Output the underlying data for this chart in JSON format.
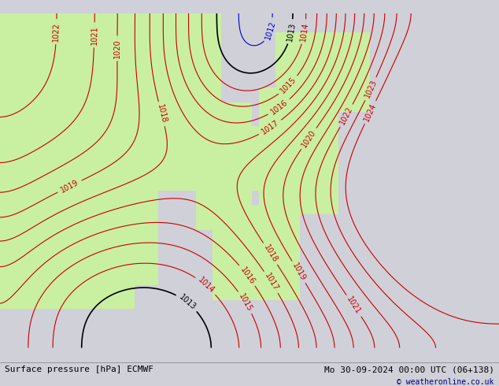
{
  "title_left": "Surface pressure [hPa] ECMWF",
  "title_right": "Mo 30-09-2024 00:00 UTC (06+138)",
  "copyright": "© weatheronline.co.uk",
  "bg_color": "#d0d0d8",
  "land_color": "#c8f0a0",
  "sea_color": "#d8d8e8",
  "contour_color_red": "#cc0000",
  "contour_color_black": "#000000",
  "contour_color_blue": "#0000cc",
  "label_fontsize": 7,
  "footer_fontsize": 8,
  "figsize": [
    6.34,
    4.9
  ],
  "dpi": 100
}
